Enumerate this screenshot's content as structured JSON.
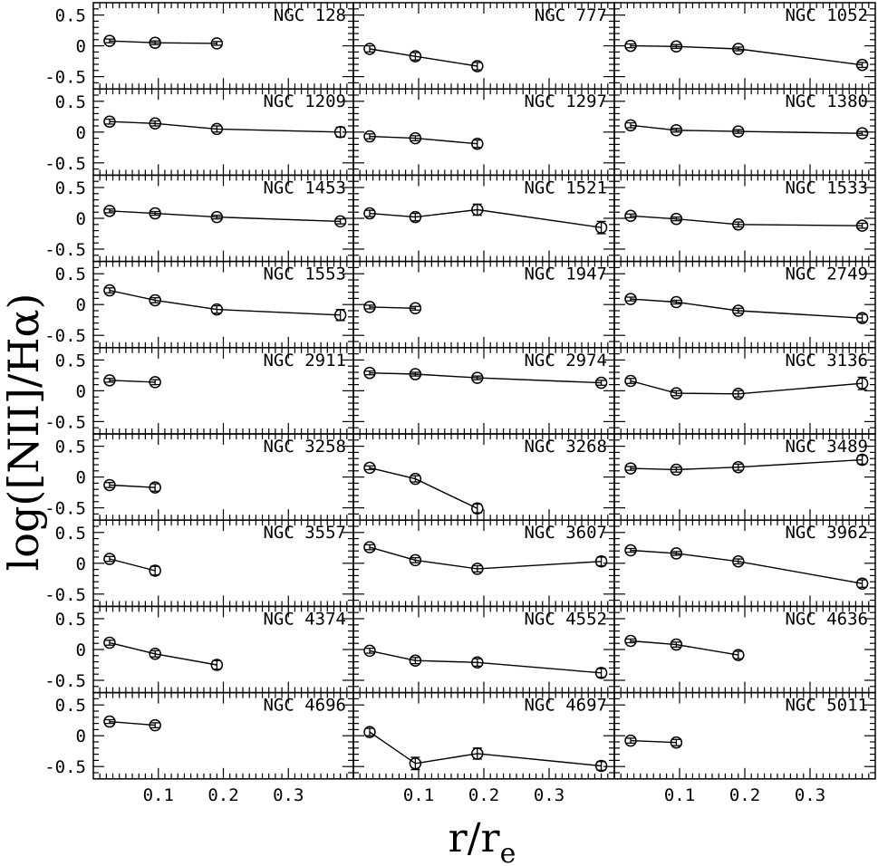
{
  "chart_data": {
    "type": "scatter",
    "description_layout": "9 rows x 3 columns of small panels with shared axes",
    "xlabel": "r/r",
    "xlabel_sub": "e",
    "ylabel": "log([NII]/Hα)",
    "xlim": [
      0.0,
      0.4
    ],
    "ylim": [
      -0.7,
      0.7
    ],
    "xticks": [
      0.1,
      0.2,
      0.3
    ],
    "xticklabels": [
      "0.1",
      "0.2",
      "0.3"
    ],
    "yticks": [
      0.5,
      0,
      -0.5
    ],
    "yticklabels": [
      "0.5",
      "0",
      "-0.5"
    ],
    "x": [
      0.025,
      0.095,
      0.19,
      0.38
    ],
    "panels": [
      {
        "name": "NGC 128",
        "y": [
          0.08,
          0.05,
          0.04
        ],
        "err": [
          0.03,
          0.03,
          0.03
        ]
      },
      {
        "name": "NGC 777",
        "y": [
          -0.05,
          -0.17,
          -0.33
        ],
        "err": [
          0.05,
          0.06,
          0.06
        ]
      },
      {
        "name": "NGC 1052",
        "y": [
          0.0,
          -0.01,
          -0.05,
          -0.31
        ],
        "err": [
          0.03,
          0.03,
          0.03,
          0.04
        ]
      },
      {
        "name": "NGC 1209",
        "y": [
          0.17,
          0.14,
          0.05,
          0.0
        ],
        "err": [
          0.04,
          0.04,
          0.05,
          0.08
        ]
      },
      {
        "name": "NGC 1297",
        "y": [
          -0.07,
          -0.1,
          -0.19
        ],
        "err": [
          0.04,
          0.04,
          0.06
        ]
      },
      {
        "name": "NGC 1380",
        "y": [
          0.11,
          0.03,
          0.01,
          -0.02
        ],
        "err": [
          0.04,
          0.03,
          0.03,
          0.03
        ]
      },
      {
        "name": "NGC 1453",
        "y": [
          0.12,
          0.08,
          0.02,
          -0.05
        ],
        "err": [
          0.03,
          0.03,
          0.03,
          0.04
        ]
      },
      {
        "name": "NGC 1521",
        "y": [
          0.08,
          0.02,
          0.14,
          -0.15
        ],
        "err": [
          0.05,
          0.06,
          0.09,
          0.1
        ]
      },
      {
        "name": "NGC 1533",
        "y": [
          0.04,
          -0.01,
          -0.1,
          -0.12
        ],
        "err": [
          0.03,
          0.03,
          0.04,
          0.04
        ]
      },
      {
        "name": "NGC 1553",
        "y": [
          0.23,
          0.07,
          -0.08,
          -0.17
        ],
        "err": [
          0.04,
          0.04,
          0.06,
          0.09
        ]
      },
      {
        "name": "NGC 1947",
        "y": [
          -0.04,
          -0.06
        ],
        "err": [
          0.03,
          0.03
        ]
      },
      {
        "name": "NGC 2749",
        "y": [
          0.09,
          0.04,
          -0.1,
          -0.22
        ],
        "err": [
          0.03,
          0.03,
          0.04,
          0.06
        ]
      },
      {
        "name": "NGC 2911",
        "y": [
          0.17,
          0.14
        ],
        "err": [
          0.03,
          0.04
        ]
      },
      {
        "name": "NGC 2974",
        "y": [
          0.29,
          0.27,
          0.21,
          0.13
        ],
        "err": [
          0.03,
          0.03,
          0.03,
          0.04
        ]
      },
      {
        "name": "NGC 3136",
        "y": [
          0.16,
          -0.04,
          -0.05,
          0.12
        ],
        "err": [
          0.04,
          0.04,
          0.05,
          0.1
        ]
      },
      {
        "name": "NGC 3258",
        "y": [
          -0.13,
          -0.17
        ],
        "err": [
          0.04,
          0.06
        ]
      },
      {
        "name": "NGC 3268",
        "y": [
          0.15,
          -0.03,
          -0.51
        ],
        "err": [
          0.03,
          0.05,
          0.07
        ]
      },
      {
        "name": "NGC 3489",
        "y": [
          0.14,
          0.12,
          0.16,
          0.28
        ],
        "err": [
          0.03,
          0.04,
          0.05,
          0.07
        ]
      },
      {
        "name": "NGC 3557",
        "y": [
          0.07,
          -0.12
        ],
        "err": [
          0.04,
          0.07
        ]
      },
      {
        "name": "NGC 3607",
        "y": [
          0.26,
          0.05,
          -0.09,
          0.03
        ],
        "err": [
          0.04,
          0.04,
          0.05,
          0.07
        ]
      },
      {
        "name": "NGC 3962",
        "y": [
          0.21,
          0.16,
          0.03,
          -0.33
        ],
        "err": [
          0.03,
          0.03,
          0.04,
          0.06
        ]
      },
      {
        "name": "NGC 4374",
        "y": [
          0.11,
          -0.07,
          -0.25
        ],
        "err": [
          0.04,
          0.05,
          0.07
        ]
      },
      {
        "name": "NGC 4552",
        "y": [
          -0.02,
          -0.18,
          -0.21,
          -0.38
        ],
        "err": [
          0.04,
          0.05,
          0.06,
          0.07
        ]
      },
      {
        "name": "NGC 4636",
        "y": [
          0.14,
          0.08,
          -0.09
        ],
        "err": [
          0.03,
          0.04,
          0.06
        ]
      },
      {
        "name": "NGC 4696",
        "y": [
          0.23,
          0.17
        ],
        "err": [
          0.03,
          0.04
        ]
      },
      {
        "name": "NGC 4697",
        "y": [
          0.06,
          -0.45,
          -0.29,
          -0.49
        ],
        "err": [
          0.06,
          0.1,
          0.09,
          0.07
        ]
      },
      {
        "name": "NGC 5011",
        "y": [
          -0.08,
          -0.11
        ],
        "err": [
          0.04,
          0.05
        ]
      }
    ]
  }
}
